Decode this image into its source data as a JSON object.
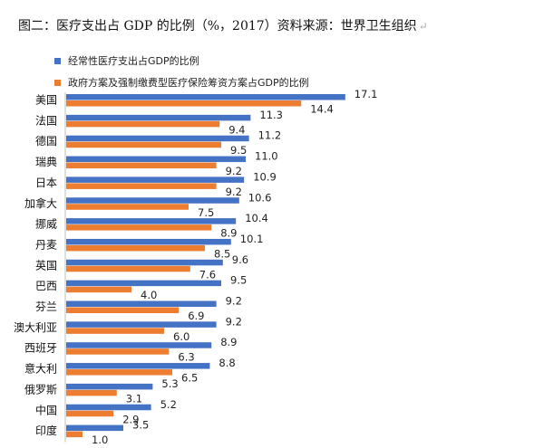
{
  "caption": {
    "title": "图二：医疗支出占 GDP 的比例（%，2017）资料来源：世界卫生组织",
    "end_mark": "↵"
  },
  "chart_data": {
    "type": "bar",
    "orientation": "horizontal",
    "categories": [
      "美国",
      "法国",
      "德国",
      "瑞典",
      "日本",
      "加拿大",
      "挪威",
      "丹麦",
      "英国",
      "巴西",
      "芬兰",
      "澳大利亚",
      "西班牙",
      "意大利",
      "俄罗斯",
      "中国",
      "印度"
    ],
    "series": [
      {
        "name": "经常性医疗支出占GDP的比例",
        "color": "#4472C4",
        "values": [
          17.1,
          11.3,
          11.2,
          11.0,
          10.9,
          10.6,
          10.4,
          10.1,
          9.6,
          9.5,
          9.2,
          9.2,
          8.9,
          8.8,
          5.3,
          5.2,
          3.5
        ]
      },
      {
        "name": "政府方案及强制缴费型医疗保险筹资方案占GDP的比例",
        "color": "#ED7D31",
        "values": [
          14.4,
          9.4,
          9.5,
          9.2,
          9.2,
          7.5,
          8.9,
          8.5,
          7.6,
          4.0,
          6.9,
          6.0,
          6.3,
          6.5,
          3.1,
          2.9,
          1.0
        ]
      }
    ],
    "data_labels": true,
    "legend_position": "top-left"
  }
}
